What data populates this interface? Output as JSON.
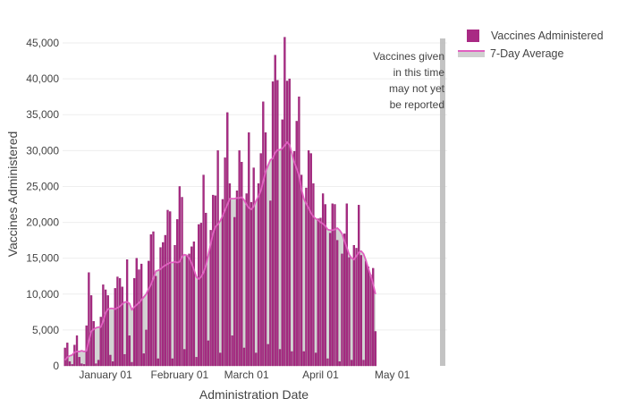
{
  "colors": {
    "bar": "#a92a84",
    "bar_stroke": "#8a1e6a",
    "line": "#e060c0",
    "area": "#d3d3d3",
    "axis_text": "#444444",
    "grid": "#eeeeee",
    "shade": "#bdbdbd"
  },
  "legend": {
    "bars_label": "Vaccines Administered",
    "line_label": "7-Day Average"
  },
  "annotation": {
    "lines": [
      "Vaccines given",
      "in this time",
      "may not yet",
      "be reported"
    ]
  },
  "chart_data": {
    "type": "bar",
    "title": "",
    "xlabel": "Administration Date",
    "ylabel": "Vaccines Administered",
    "x_range": [
      "2020-12-14",
      "2021-05-24"
    ],
    "ylim": [
      0,
      46000
    ],
    "yticks": [
      0,
      5000,
      10000,
      15000,
      20000,
      25000,
      30000,
      35000,
      40000,
      45000
    ],
    "ytick_labels": [
      "0",
      "5,000",
      "10,000",
      "15,000",
      "20,000",
      "25,000",
      "30,000",
      "35,000",
      "40,000",
      "45,000"
    ],
    "xticks": [
      "2021-01-01",
      "2021-02-01",
      "2021-03-01",
      "2021-04-01",
      "2021-05-01"
    ],
    "xtick_labels": [
      "January 01",
      "February 01",
      "March 01",
      "April 01",
      "May 01"
    ],
    "grid": true,
    "legend_position": "top-right",
    "shaded_region": {
      "start": "2021-05-21",
      "end": "2021-05-23",
      "note": "Vaccines given in this time may not yet be reported"
    },
    "series": [
      {
        "name": "Vaccines Administered",
        "kind": "bar",
        "start_date": "2020-12-15",
        "values": [
          2500,
          3200,
          600,
          200,
          2900,
          4200,
          1200,
          300,
          200,
          5600,
          13000,
          9800,
          6200,
          300,
          800,
          6800,
          11300,
          10600,
          9800,
          1500,
          600,
          10800,
          12400,
          12200,
          11000,
          1600,
          14800,
          4200,
          500,
          12200,
          15000,
          13400,
          14200,
          1700,
          5000,
          14600,
          18300,
          18700,
          12500,
          1000,
          16500,
          17200,
          18200,
          21700,
          21500,
          1000,
          16800,
          20400,
          25000,
          23500,
          2300,
          15300,
          15600,
          16600,
          17300,
          1200,
          19700,
          19900,
          26600,
          21300,
          3500,
          18900,
          23800,
          23700,
          30000,
          1800,
          23200,
          29000,
          35300,
          25400,
          4200,
          20700,
          24400,
          30000,
          28400,
          2500,
          24000,
          32500,
          22800,
          27600,
          1800,
          25400,
          29600,
          36800,
          32500,
          3000,
          23000,
          39600,
          43300,
          39800,
          2300,
          34300,
          45800,
          39700,
          40000,
          2000,
          29900,
          34100,
          37500,
          26600,
          2000,
          24800,
          30000,
          29600,
          25400,
          1800,
          20500,
          20600,
          24000,
          22500,
          1000,
          18500,
          22600,
          22500,
          17500,
          600,
          15600,
          18400,
          22600,
          15100,
          800,
          16800,
          16400,
          22400,
          15400,
          800,
          14600,
          13800,
          12700,
          13600,
          4800
        ]
      },
      {
        "name": "7-Day Average",
        "kind": "line",
        "start_date": "2020-12-15",
        "values": [
          800,
          1200,
          1400,
          1500,
          1900,
          2000,
          2000,
          2100,
          2000,
          2100,
          3500,
          4800,
          5100,
          5300,
          5400,
          5400,
          6200,
          7400,
          7900,
          8000,
          8000,
          7900,
          8100,
          8300,
          8600,
          8900,
          8900,
          8700,
          7800,
          8200,
          8500,
          8800,
          9200,
          9600,
          10000,
          10700,
          11300,
          12200,
          13200,
          13300,
          13500,
          13800,
          14000,
          14200,
          14400,
          14400,
          14500,
          14400,
          14500,
          15200,
          15500,
          15400,
          15000,
          14300,
          13400,
          12400,
          12100,
          12400,
          13000,
          14000,
          15400,
          17000,
          18500,
          19400,
          19700,
          20200,
          20900,
          21700,
          22500,
          23300,
          23300,
          23300,
          23400,
          23400,
          23500,
          23100,
          22500,
          22000,
          21800,
          22200,
          23000,
          23600,
          24400,
          25700,
          27100,
          27900,
          28700,
          28900,
          29700,
          30100,
          30100,
          30300,
          30700,
          31200,
          30800,
          29600,
          28400,
          27500,
          26500,
          24600,
          23300,
          22600,
          22000,
          21300,
          20800,
          20500,
          20300,
          20000,
          19800,
          19500,
          19000,
          18900,
          18900,
          19000,
          19200,
          18900,
          18400,
          17400,
          16500,
          15500,
          15000,
          14800,
          15300,
          15800,
          16000,
          15600,
          14700,
          13600,
          12600,
          11400,
          10000
        ]
      }
    ]
  }
}
